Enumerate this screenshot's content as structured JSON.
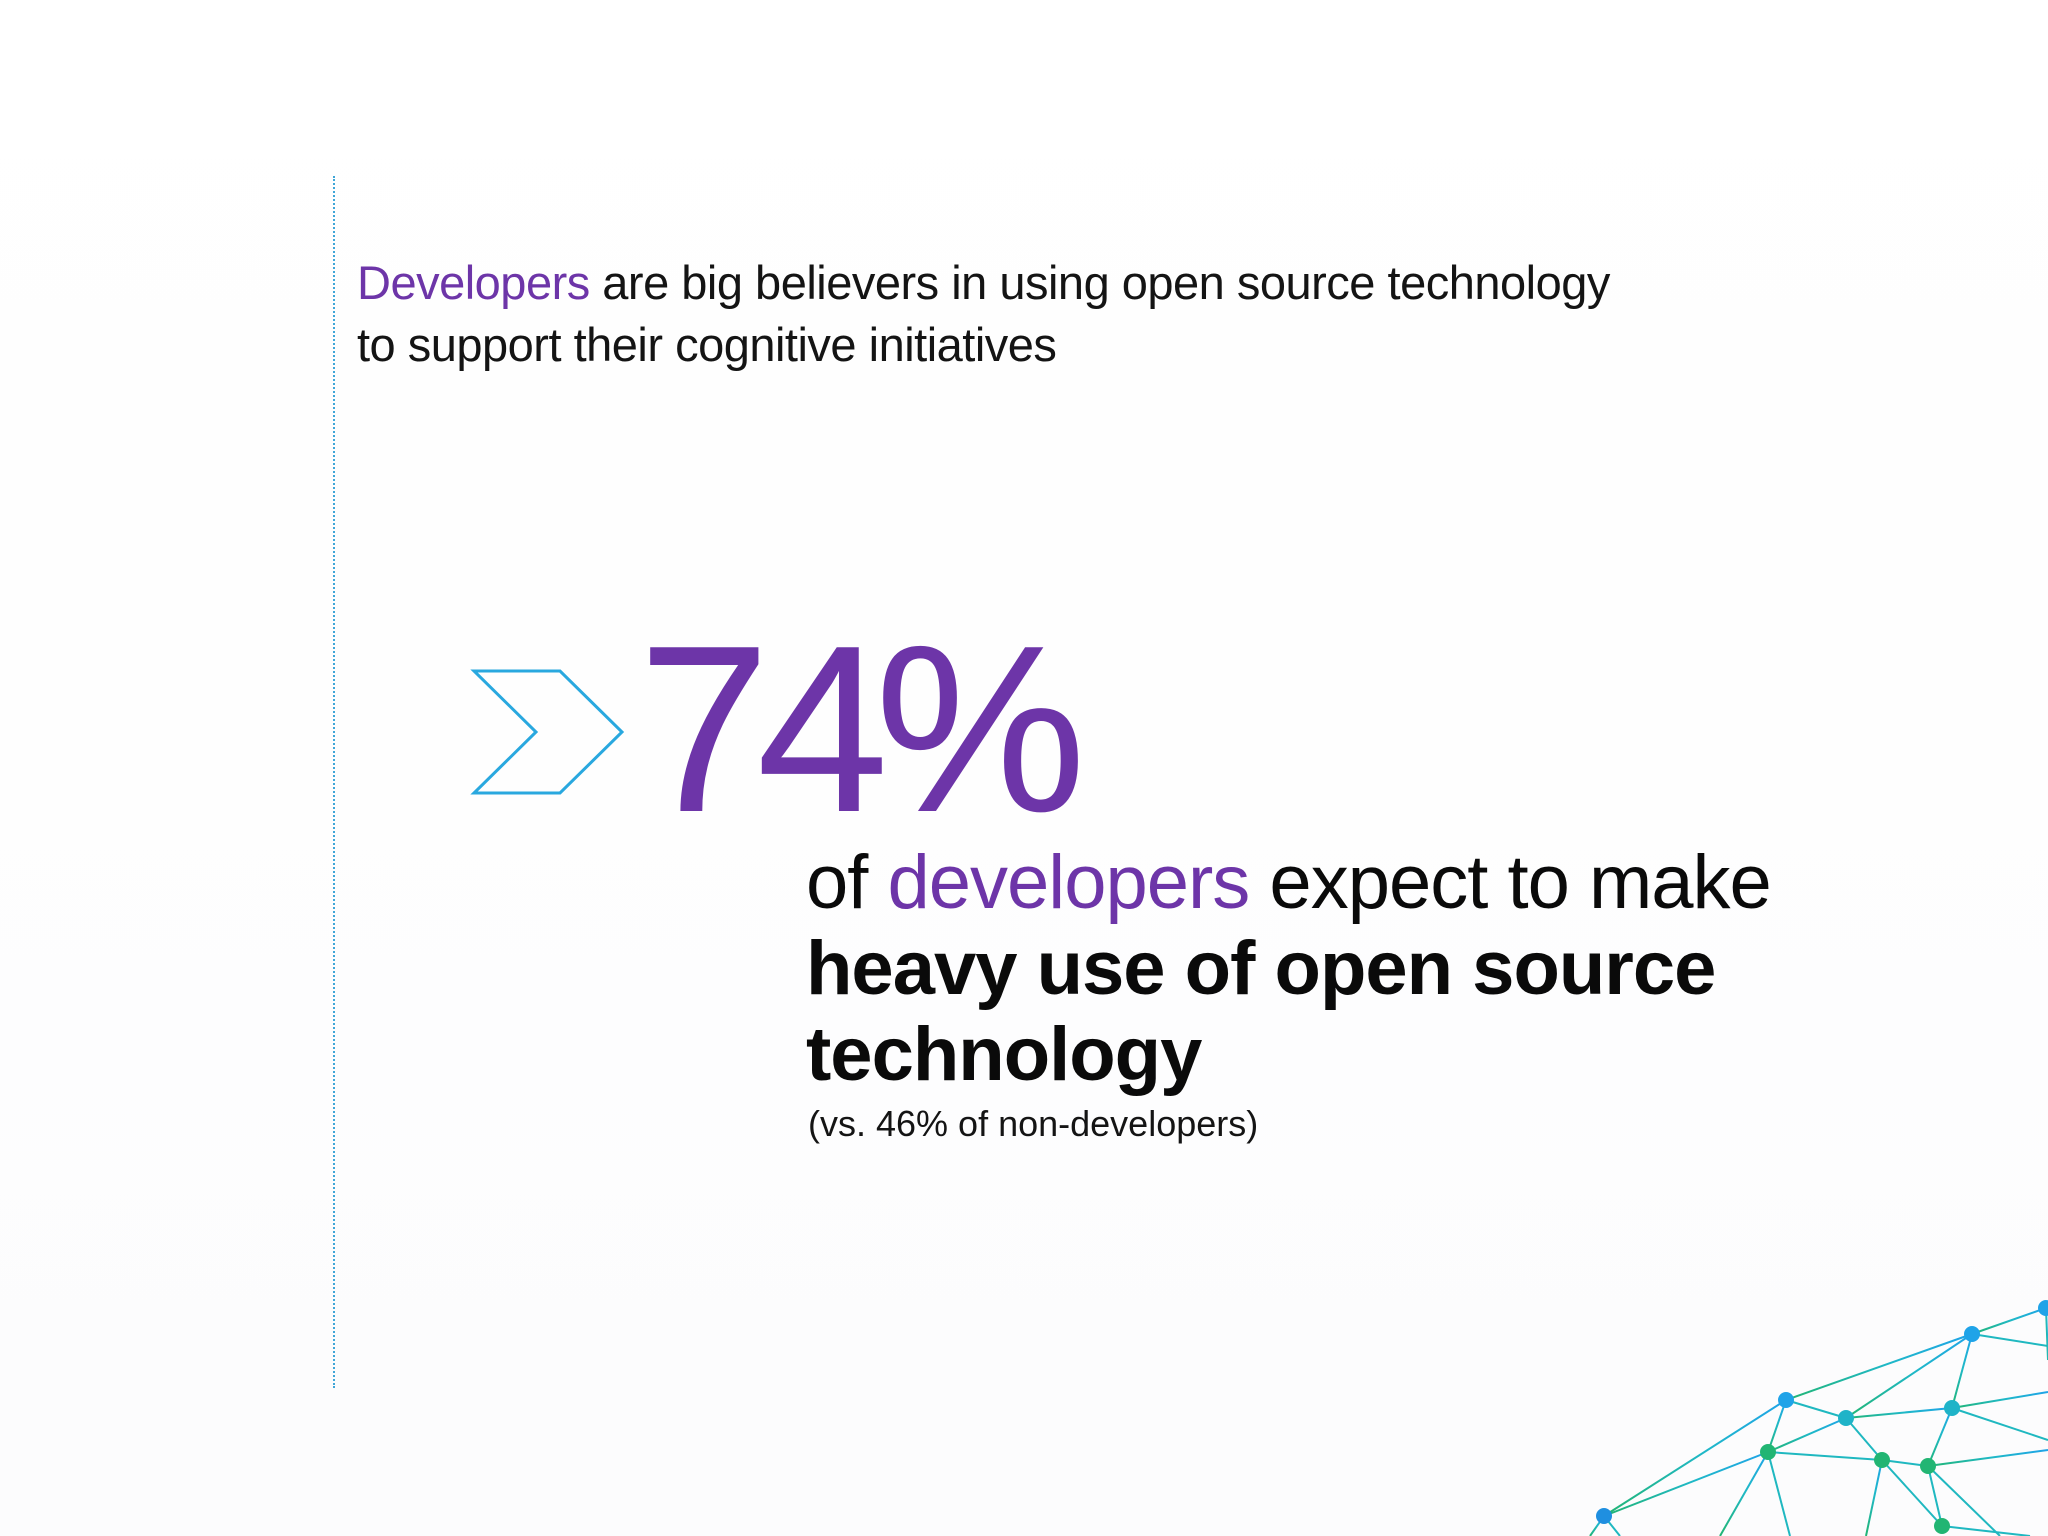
{
  "headline": {
    "accent_word": "Developers",
    "rest_line1": " are big believers in using open source technology",
    "rest_line2": "to support their cognitive initiatives"
  },
  "stat": {
    "value": "74%",
    "text_of": "of ",
    "text_accent": "developers",
    "text_mid": " expect to make ",
    "text_bold": "heavy use of open source technology",
    "note": "(vs. 46% of non-developers)"
  },
  "colors": {
    "accent": "#6d35a8",
    "chevron": "#29a8df",
    "network_blue": "#1fa3e8",
    "network_green": "#22b573"
  },
  "icons": {
    "chevron": "chevron-right-outline-icon",
    "network": "network-mesh-globe-icon"
  }
}
